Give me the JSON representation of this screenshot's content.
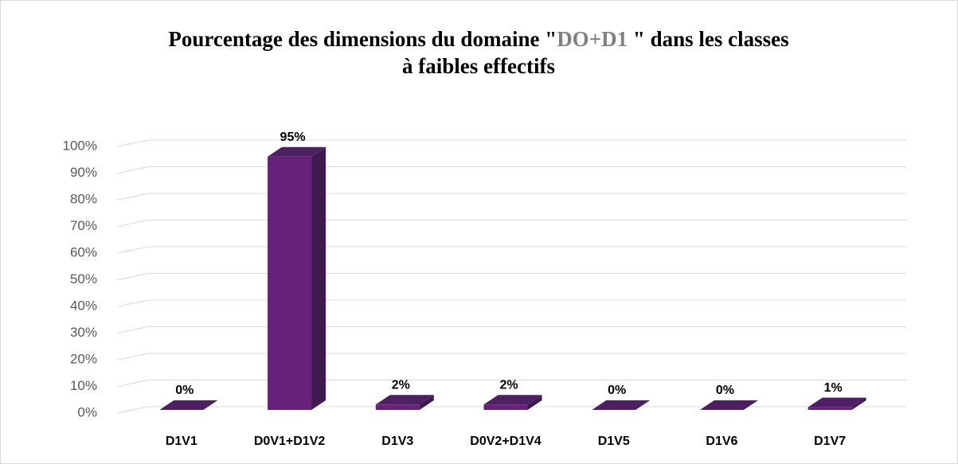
{
  "chart_data": {
    "type": "bar3d",
    "title": [
      [
        "Pourcentage des dimensions du domaine \"",
        "DO+D1",
        " \" dans les classes"
      ],
      [
        "à faibles effectifs"
      ]
    ],
    "categories": [
      "D1V1",
      "D0V1+D1V2",
      "D1V3",
      "D0V2+D1V4",
      "D1V5",
      "D1V6",
      "D1V7"
    ],
    "values": [
      0,
      95,
      2,
      2,
      0,
      0,
      1
    ],
    "value_labels": [
      "0%",
      "95%",
      "2%",
      "2%",
      "0%",
      "0%",
      "1%"
    ],
    "color": "#68217a",
    "ylim": [
      0,
      100
    ],
    "yticks": [
      {
        "value": 0,
        "label": "0%"
      },
      {
        "value": 10,
        "label": "10%"
      },
      {
        "value": 20,
        "label": "20%"
      },
      {
        "value": 30,
        "label": "30%"
      },
      {
        "value": 40,
        "label": "40%"
      },
      {
        "value": 50,
        "label": "50%"
      },
      {
        "value": 60,
        "label": "60%"
      },
      {
        "value": 70,
        "label": "70%"
      },
      {
        "value": 80,
        "label": "80%"
      },
      {
        "value": 90,
        "label": "90%"
      },
      {
        "value": 100,
        "label": "100%"
      }
    ],
    "grid": true
  }
}
